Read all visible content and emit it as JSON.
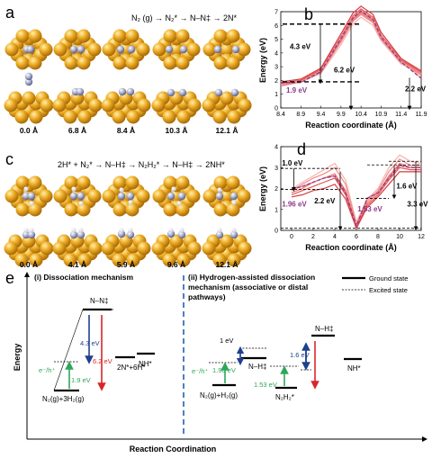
{
  "panel_a": {
    "letter": "a",
    "reaction": "N₂ (g) → N₂* → N–N‡ → 2N*",
    "distances": [
      "0.0 Å",
      "6.8 Å",
      "8.4 Å",
      "10.3 Å",
      "12.1 Å"
    ]
  },
  "panel_c": {
    "letter": "c",
    "reaction": "2H* + N₂* → N–H‡ → N₂H₂* → N–H‡ → 2NH*",
    "distances": [
      "0.0 Å",
      "4.1 Å",
      "5.9 Å",
      "9.6 Å",
      "12.1 Å"
    ]
  },
  "panel_e": {
    "letter": "e",
    "left_title": "(i) Dissociation mechanism",
    "right_title_lines": [
      "(ii) Hydrogen-assisted dissociation",
      "mechanism (associative or distal",
      "pathways)"
    ],
    "legend_ground": "Ground state",
    "legend_excited": "Excited state",
    "ylabel": "Energy",
    "xlabel": "Reaction Coordination",
    "left_labels": {
      "initial": "N₂(g)+3H₂(g)",
      "ts": "N–N‡",
      "product": "2N*+6H*",
      "final": "NH*",
      "eh": "e⁻/h⁺",
      "v1": "1.9 eV",
      "v2": "4.3 eV",
      "v3": "6.2 eV"
    },
    "right_labels": {
      "initial": "N₂(g)+H₂(g)",
      "ts1": "N–H‡",
      "inter": "N₂H₂*",
      "ts2": "N–H‡",
      "final": "NH*",
      "eh": "e⁻/h⁺",
      "v1": "1.96 eV",
      "v2": "1 eV",
      "v3": "1.53 eV",
      "v4": "1.6 eV"
    }
  },
  "chart_data": [
    {
      "panel": "b",
      "type": "line",
      "xlabel": "Reaction coordinate (Å)",
      "ylabel": "Energy (eV)",
      "xlim": [
        8.4,
        11.9
      ],
      "ylim": [
        0,
        7
      ],
      "x_ticks": [
        8.4,
        8.9,
        9.4,
        9.9,
        10.4,
        10.9,
        11.4,
        11.9
      ],
      "y_ticks": [
        0,
        1,
        2,
        3,
        4,
        5,
        6,
        7
      ],
      "grid": false,
      "x": [
        8.4,
        8.9,
        9.4,
        9.9,
        10.2,
        10.4,
        10.7,
        10.9,
        11.4,
        11.9
      ],
      "series": [
        {
          "values": [
            1.7,
            1.9,
            2.5,
            4.6,
            6.1,
            6.6,
            6.0,
            4.9,
            3.2,
            2.5
          ]
        },
        {
          "values": [
            1.7,
            1.9,
            2.6,
            4.8,
            6.3,
            6.8,
            6.2,
            5.0,
            3.3,
            2.5
          ]
        },
        {
          "values": [
            1.8,
            2.0,
            2.7,
            5.0,
            6.5,
            7.0,
            6.4,
            5.2,
            3.4,
            2.6
          ]
        },
        {
          "values": [
            1.8,
            2.0,
            2.8,
            5.2,
            6.7,
            7.2,
            6.6,
            5.3,
            3.5,
            2.6
          ]
        },
        {
          "values": [
            1.9,
            2.1,
            2.9,
            5.4,
            6.9,
            7.4,
            6.8,
            5.5,
            3.6,
            2.7
          ]
        },
        {
          "values": [
            1.6,
            1.9,
            2.6,
            4.9,
            6.4,
            6.9,
            6.3,
            5.1,
            3.3,
            2.4
          ]
        },
        {
          "values": [
            1.9,
            1.9,
            2.7,
            5.1,
            6.6,
            7.1,
            6.5,
            5.2,
            3.4,
            2.2
          ]
        }
      ],
      "annotations": [
        "4.3 eV",
        "6.2 eV",
        "1.9 eV",
        "2.2 eV"
      ],
      "letter": "b"
    },
    {
      "panel": "d",
      "type": "line",
      "xlabel": "Reaction coordinate (Å)",
      "ylabel": "Energy (eV)",
      "xlim": [
        -1,
        12
      ],
      "ylim": [
        0,
        4
      ],
      "x_ticks": [
        0,
        2,
        4,
        6,
        8,
        10,
        12
      ],
      "y_ticks": [
        0,
        1,
        2,
        3,
        4
      ],
      "grid": false,
      "x": [
        0,
        1,
        2,
        3,
        4,
        5,
        6,
        7,
        8,
        9,
        10,
        11,
        12
      ],
      "series": [
        {
          "values": [
            1.96,
            2.3,
            2.6,
            2.9,
            3.2,
            2.4,
            0.4,
            1.5,
            2.0,
            3.0,
            3.6,
            3.3,
            3.2
          ]
        },
        {
          "values": [
            1.9,
            2.2,
            2.5,
            2.7,
            3.0,
            2.2,
            0.3,
            1.4,
            1.9,
            2.8,
            3.4,
            3.1,
            3.1
          ]
        },
        {
          "values": [
            1.8,
            2.0,
            2.3,
            2.5,
            2.7,
            1.9,
            0.2,
            1.3,
            1.8,
            2.6,
            3.2,
            3.0,
            3.0
          ]
        },
        {
          "values": [
            1.7,
            1.9,
            2.1,
            2.3,
            2.5,
            1.7,
            0.1,
            1.2,
            1.7,
            2.4,
            3.0,
            2.9,
            2.9
          ]
        },
        {
          "values": [
            1.6,
            1.7,
            1.9,
            2.0,
            2.2,
            1.5,
            0.1,
            1.1,
            1.6,
            2.2,
            2.8,
            2.8,
            2.8
          ]
        },
        {
          "values": [
            1.96,
            2.1,
            2.3,
            2.5,
            2.6,
            1.8,
            0.2,
            1.53,
            1.8,
            2.5,
            3.1,
            3.0,
            3.0
          ]
        }
      ],
      "annotations": [
        "1.0 eV",
        "2.2 eV",
        "1.96 eV",
        "1.53 eV",
        "1.6 eV",
        "3.3 eV"
      ],
      "letter": "d"
    }
  ],
  "colors": {
    "gold": "#e6a11c",
    "nitrogen": "#9ea3c9",
    "curve": "#e8575b",
    "dash": "#8e3a8c",
    "green": "#2fa65a",
    "blue": "#1f3f8f",
    "red": "#d8262b",
    "separator": "#4f7fc0"
  }
}
